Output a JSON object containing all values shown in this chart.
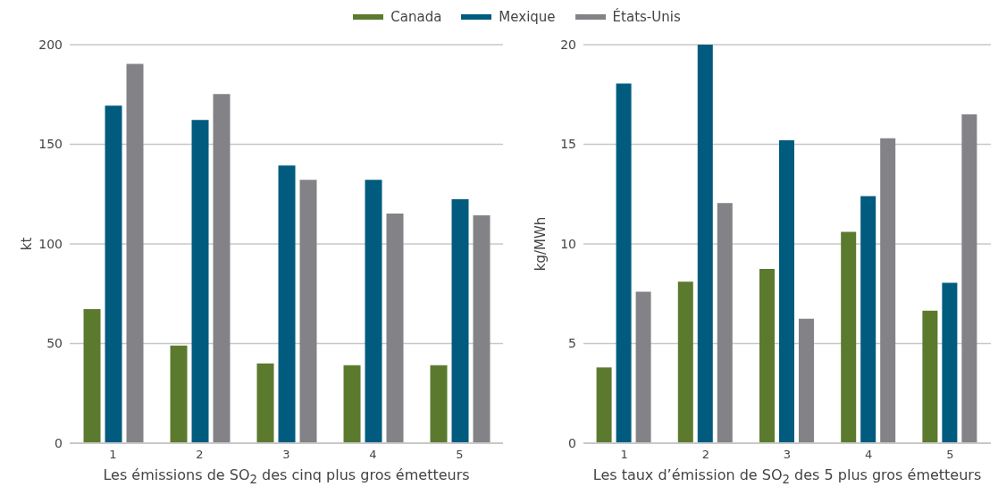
{
  "chart_data": [
    {
      "type": "bar",
      "categories": [
        "1",
        "2",
        "3",
        "4",
        "5"
      ],
      "xlabel": "Les émissions de SO$_{2}$ des cinq plus gros émetteurs",
      "ylabel": "kt",
      "ylim": [
        0,
        200
      ],
      "yticks": [
        0,
        50,
        100,
        150,
        200
      ],
      "grid": "y",
      "legend": "top",
      "series": [
        {
          "name": "Canada",
          "color": "#5b7a2e",
          "values": [
            67.3,
            49,
            40,
            39.1,
            39.1
          ]
        },
        {
          "name": "Mexique",
          "color": "#005b7f",
          "values": [
            169.4,
            162.2,
            139.4,
            132.2,
            122.4
          ]
        },
        {
          "name": "États-Unis",
          "color": "#838387",
          "values": [
            190.4,
            175.2,
            132.2,
            115.2,
            114.3
          ]
        }
      ]
    },
    {
      "type": "bar",
      "categories": [
        "1",
        "2",
        "3",
        "4",
        "5"
      ],
      "xlabel": "Les taux d’émission de SO$_{2}$ des 5 plus gros émetteurs",
      "ylabel": "kg/MWh",
      "ylim": [
        0,
        20
      ],
      "yticks": [
        0,
        5,
        10,
        15,
        20
      ],
      "grid": "y",
      "series": [
        {
          "color": "#5b7a2e",
          "values": [
            3.8,
            8.1,
            8.75,
            10.6,
            6.65
          ]
        },
        {
          "color": "#005b7f",
          "values": [
            18.05,
            20,
            15.2,
            12.4,
            8.05
          ]
        },
        {
          "color": "#838387",
          "values": [
            7.6,
            12.05,
            6.25,
            15.3,
            16.5
          ]
        }
      ]
    }
  ]
}
